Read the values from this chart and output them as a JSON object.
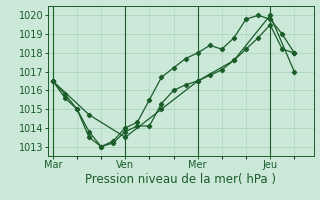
{
  "bg_color": "#cce8d8",
  "grid_color": "#b0d8c0",
  "line_color": "#1a5c2a",
  "xlabel": "Pression niveau de la mer( hPa )",
  "ylim": [
    1012.5,
    1020.5
  ],
  "yticks": [
    1013,
    1014,
    1015,
    1016,
    1017,
    1018,
    1019,
    1020
  ],
  "xlim": [
    -0.2,
    10.8
  ],
  "day_labels": [
    "Mar",
    "Ven",
    "Mer",
    "Jeu"
  ],
  "day_positions": [
    0,
    3,
    6,
    9
  ],
  "series1_x": [
    0,
    0.5,
    1.0,
    1.5,
    2.0,
    2.5,
    3.0,
    3.5,
    4.0,
    4.5,
    5.0,
    5.5,
    6.0,
    6.5,
    7.0,
    7.5,
    8.0,
    8.5,
    9.0,
    9.5,
    10.0
  ],
  "series1_y": [
    1016.5,
    1015.8,
    1015.0,
    1013.8,
    1013.0,
    1013.2,
    1013.8,
    1014.1,
    1014.1,
    1015.3,
    1016.0,
    1016.3,
    1016.5,
    1016.8,
    1017.1,
    1017.6,
    1018.2,
    1018.8,
    1019.5,
    1018.2,
    1018.0
  ],
  "series2_x": [
    0,
    0.5,
    1.0,
    1.5,
    2.0,
    2.5,
    3.0,
    3.5,
    4.0,
    4.5,
    5.0,
    5.5,
    6.0,
    6.5,
    7.0,
    7.5,
    8.0,
    8.5,
    9.0,
    9.5,
    10.0
  ],
  "series2_y": [
    1016.5,
    1015.6,
    1015.0,
    1013.5,
    1013.0,
    1013.3,
    1014.0,
    1014.3,
    1015.5,
    1016.7,
    1017.2,
    1017.7,
    1018.0,
    1018.4,
    1018.2,
    1018.8,
    1019.8,
    1020.0,
    1019.8,
    1019.0,
    1018.0
  ],
  "series3_x": [
    0,
    1.5,
    3.0,
    4.5,
    6.0,
    7.5,
    9.0,
    10.0
  ],
  "series3_y": [
    1016.5,
    1014.7,
    1013.5,
    1015.0,
    1016.5,
    1017.6,
    1020.0,
    1017.0
  ],
  "xlabel_fontsize": 8.5,
  "tick_fontsize": 7
}
